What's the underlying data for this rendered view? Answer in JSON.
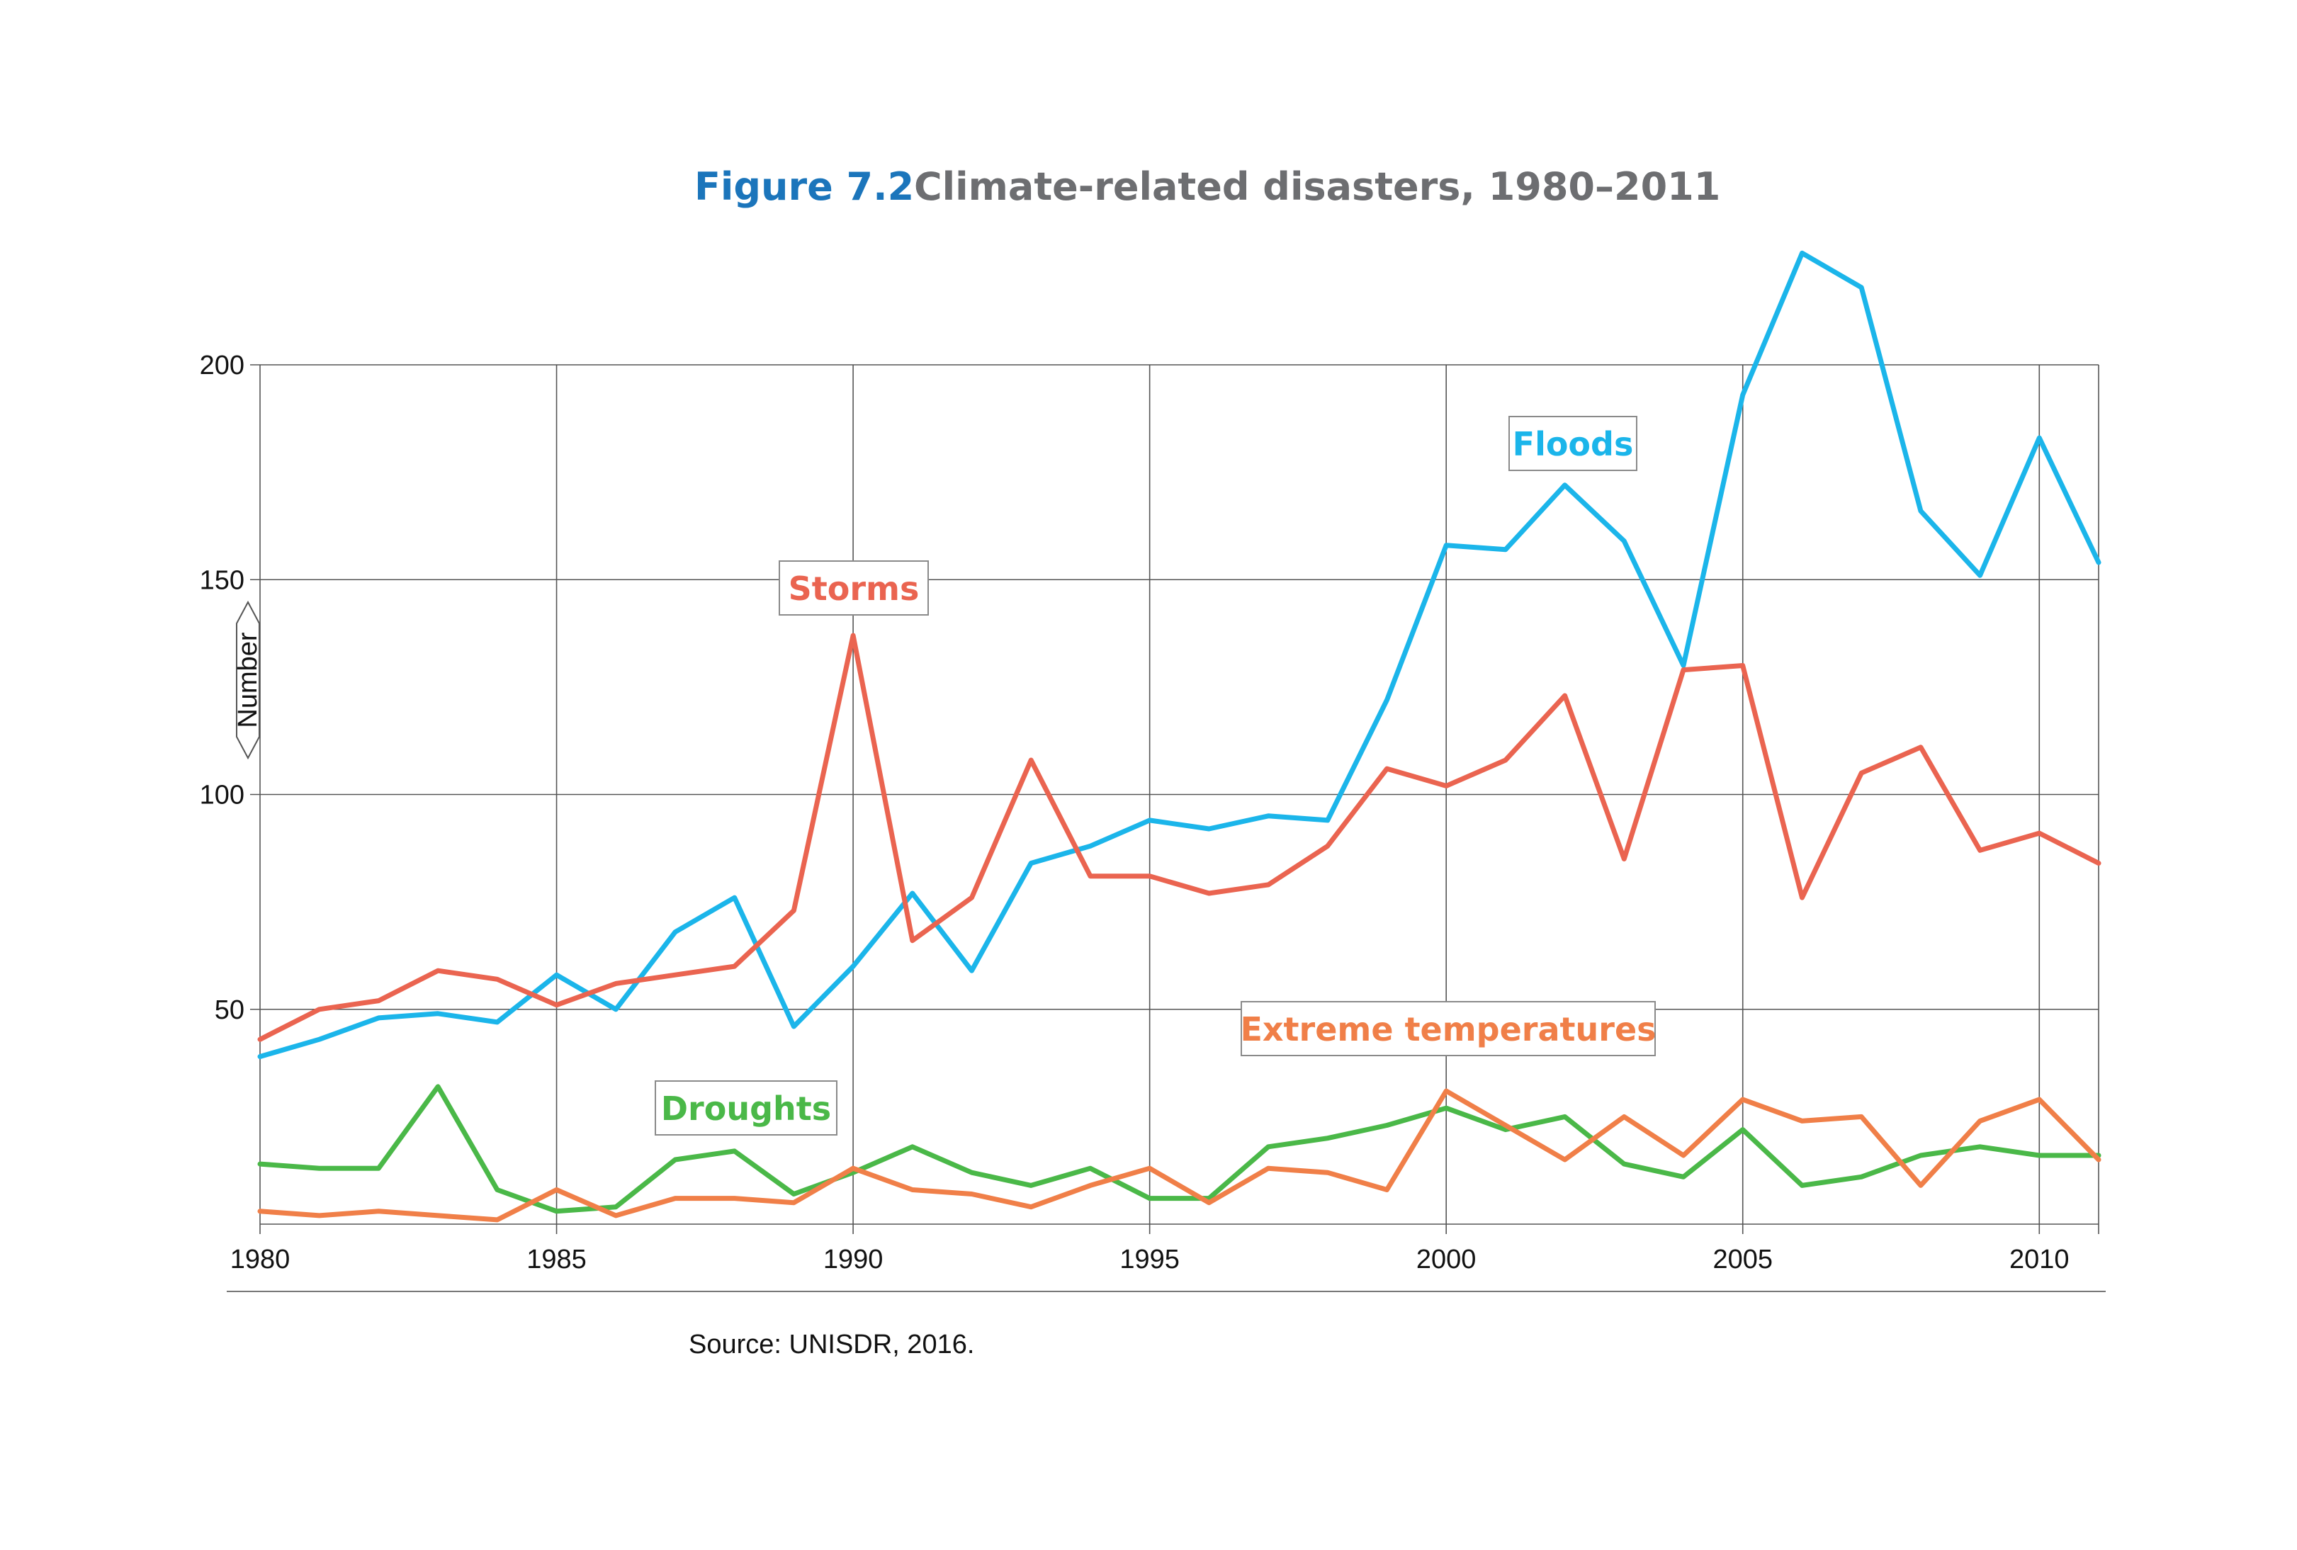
{
  "figure": {
    "number": "Figure 7.2",
    "title": "Climate-related disasters, 1980–2011",
    "source": "Source: UNISDR, 2016."
  },
  "chart_data": {
    "type": "line",
    "ylabel": "Number",
    "xlabel": "",
    "xlim": [
      1980,
      2011
    ],
    "ylim": [
      0,
      200
    ],
    "grid": true,
    "x": [
      1980,
      1981,
      1982,
      1983,
      1984,
      1985,
      1986,
      1987,
      1988,
      1989,
      1990,
      1991,
      1992,
      1993,
      1994,
      1995,
      1996,
      1997,
      1998,
      1999,
      2000,
      2001,
      2002,
      2003,
      2004,
      2005,
      2006,
      2007,
      2008,
      2009,
      2010,
      2011
    ],
    "x_ticks": [
      "1980",
      "1985",
      "1990",
      "1995",
      "2000",
      "2005",
      "2010"
    ],
    "x_tick_values": [
      1980,
      1985,
      1990,
      1995,
      2000,
      2005,
      2010
    ],
    "y_ticks": [
      "50",
      "100",
      "150",
      "200"
    ],
    "y_tick_values": [
      50,
      100,
      150,
      200
    ],
    "series": [
      {
        "name": "Floods",
        "color": "#1bb5ea",
        "values": [
          39,
          43,
          48,
          49,
          47,
          58,
          50,
          68,
          76,
          46,
          60,
          77,
          59,
          84,
          88,
          94,
          92,
          95,
          94,
          122,
          158,
          157,
          172,
          159,
          130,
          193,
          226,
          218,
          166,
          151,
          183,
          154
        ]
      },
      {
        "name": "Storms",
        "color": "#ea6450",
        "values": [
          43,
          50,
          52,
          59,
          57,
          51,
          56,
          58,
          60,
          73,
          137,
          66,
          76,
          108,
          81,
          81,
          77,
          79,
          88,
          106,
          102,
          108,
          123,
          85,
          129,
          130,
          76,
          105,
          111,
          87,
          91,
          84
        ]
      },
      {
        "name": "Droughts",
        "color": "#4ab848",
        "values": [
          14,
          13,
          13,
          32,
          8,
          3,
          4,
          15,
          17,
          7,
          12,
          18,
          12,
          9,
          13,
          6,
          6,
          18,
          20,
          23,
          27,
          22,
          25,
          14,
          11,
          22,
          9,
          11,
          16,
          18,
          16,
          16
        ]
      },
      {
        "name": "Extreme temperatures",
        "color": "#f07f48",
        "values": [
          3,
          2,
          3,
          2,
          1,
          8,
          2,
          6,
          6,
          5,
          13,
          8,
          7,
          4,
          9,
          13,
          5,
          13,
          12,
          8,
          31,
          23,
          15,
          25,
          16,
          29,
          24,
          25,
          9,
          24,
          29,
          15
        ]
      }
    ]
  }
}
